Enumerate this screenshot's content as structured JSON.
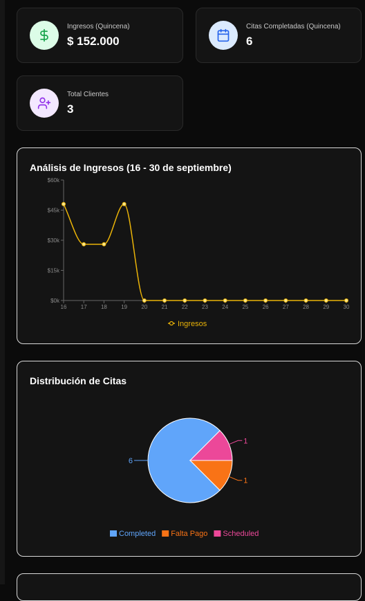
{
  "stats": [
    {
      "label": "Ingresos (Quincena)",
      "value": "$ 152.000",
      "icon": "dollar-icon"
    },
    {
      "label": "Citas Completadas (Quincena)",
      "value": "6",
      "icon": "calendar-icon"
    },
    {
      "label": "Total Clientes",
      "value": "3",
      "icon": "user-plus-icon"
    }
  ],
  "colors": {
    "income_line": "#eab308",
    "completed": "#60a5fa",
    "falta_pago": "#f97316",
    "scheduled": "#ec4899",
    "dollar_bg": "#dcfce7",
    "calendar_bg": "#dbeafe",
    "user_bg": "#f3e8ff"
  },
  "income_chart": {
    "title": "Análisis de Ingresos (16 - 30 de septiembre)",
    "chart_data": {
      "type": "line",
      "x": [
        "16",
        "17",
        "18",
        "19",
        "20",
        "21",
        "22",
        "23",
        "24",
        "25",
        "26",
        "27",
        "28",
        "29",
        "30"
      ],
      "series": [
        {
          "name": "Ingresos",
          "values": [
            48000,
            28000,
            28000,
            48000,
            0,
            0,
            0,
            0,
            0,
            0,
            0,
            0,
            0,
            0,
            0
          ]
        }
      ],
      "ylim": [
        0,
        60000
      ],
      "yticks": [
        "$0k",
        "$15k",
        "$30k",
        "$45k",
        "$60k"
      ],
      "legend": "bottom"
    }
  },
  "appointments_chart": {
    "title": "Distribución de Citas",
    "chart_data": {
      "type": "pie",
      "categories": [
        "Completed",
        "Falta Pago",
        "Scheduled"
      ],
      "values": [
        6,
        1,
        1
      ],
      "labels": [
        "6",
        "1",
        "1"
      ],
      "legend": "bottom"
    }
  }
}
